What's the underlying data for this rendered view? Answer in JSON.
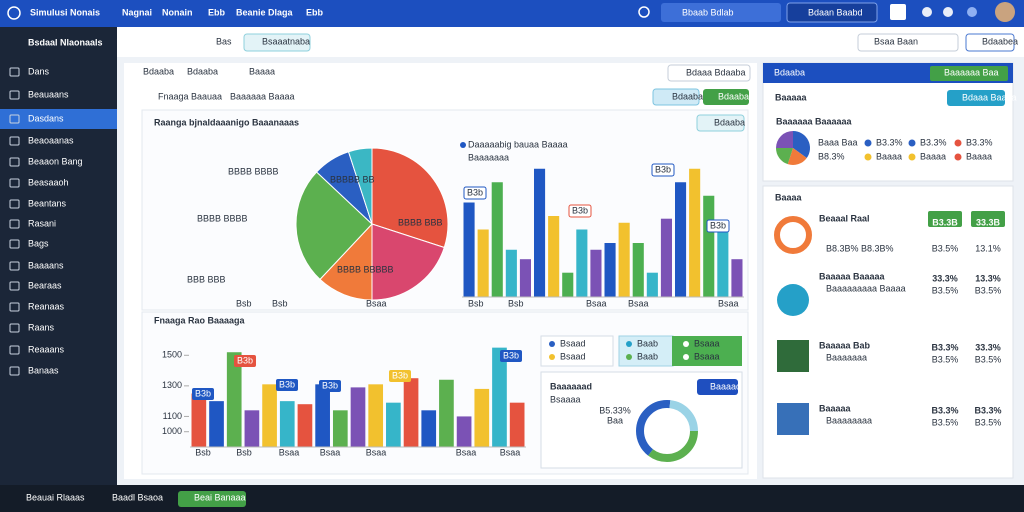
{
  "topbar": {
    "title": "Simulusi Nonais",
    "menu": [
      "Nagnai",
      "Nonain",
      "Ebb",
      "Beanie Dlaga",
      "Ebb"
    ],
    "search": "Bbaab Bdlab",
    "button": "Bdaan Baabd"
  },
  "sidebar": {
    "brand": "Bsdaal Nlaonaals",
    "items": [
      "Dans",
      "Beauaans",
      "Dasdans",
      "Beaoaanas",
      "Beaaon Bang",
      "Beasaaoh",
      "Beantans",
      "Rasani",
      "Bags",
      "Baaaans",
      "Bearaas",
      "Reanaas",
      "Raans",
      "Reaaans",
      "Banaas"
    ],
    "active_index": 2
  },
  "toolbar": {
    "label": "Bas",
    "chip": "Bsaaatnaba",
    "search": "Bsaa Baan",
    "button": "Bdaabea"
  },
  "tabs": [
    "Bdaaba",
    "Bdaaba",
    "Baaaa"
  ],
  "filter": "Bdaaa Bdaaba",
  "breadcrumb": [
    "Fnaaga Baauaa",
    "Baaaaaa Baaaa"
  ],
  "actions": [
    "Bdaaba",
    "Bdaaba"
  ],
  "panel_button": "Bdaaba",
  "pie_chart": {
    "type": "pie",
    "title": "Raanga bjnaldaaanigo Baaanaaas",
    "values": [
      30,
      20,
      12,
      25,
      8,
      5
    ],
    "colors": [
      "#e5533f",
      "#d9476e",
      "#f07a3a",
      "#5cb04f",
      "#2a5fc2",
      "#3bb7c4"
    ],
    "annotations": [
      "BBBB BBBB",
      "BBBB BBBB",
      "BBB BBB",
      "BBBBB BB",
      "BBBB BBB",
      "BBBB BBBBB"
    ],
    "categories": [
      "Bsb",
      "Bsb",
      "Bsaa"
    ]
  },
  "top_bar_chart": {
    "type": "bar",
    "legend": [
      "Daaaaabig bauaa Baaaa",
      "Baaaaaaa"
    ],
    "values": [
      70,
      50,
      85,
      35,
      28,
      95,
      60,
      18,
      50,
      35,
      40,
      55,
      40,
      18,
      58,
      85,
      95,
      75,
      50,
      28
    ],
    "colors": [
      "#1f57c3",
      "#f2c12e",
      "#4caf50",
      "#36b5c9",
      "#7b52b5"
    ],
    "ylim": [
      0,
      100
    ],
    "callouts": [
      "B3b",
      "B3b",
      "B3b",
      "B3b"
    ],
    "categories": [
      "Bsb",
      "Bsb",
      "Bsaa",
      "Bsaa",
      "Bsaa"
    ]
  },
  "lower_title": "Fnaaga Rao Baaaaga",
  "bottom_bar_chart": {
    "type": "bar",
    "values": [
      1250,
      1200,
      1520,
      1140,
      1310,
      1200,
      1180,
      1310,
      1140,
      1290,
      1310,
      1190,
      1350,
      1140,
      1340,
      1100,
      1280,
      1550,
      1190
    ],
    "colors": [
      "#e5533f",
      "#1f57c3",
      "#5cb04f",
      "#7b52b5",
      "#f2c12e",
      "#36b5c9"
    ],
    "ylim": [
      900,
      1600
    ],
    "yticks": [
      1000,
      1100,
      1300,
      1500
    ],
    "callouts": [
      "B3b",
      "B3b",
      "B3b",
      "B3b",
      "B3b",
      "B3b"
    ],
    "categories": [
      "Bsb",
      "Bsb",
      "Bsaa",
      "Bsaa",
      "Bsaa",
      "Bsaa",
      "Bsaa"
    ]
  },
  "legend_boxes": [
    "Bsaad",
    "Bsaad",
    "Baab",
    "Baab",
    "Bsaaa",
    "Bsaaa"
  ],
  "donut_card": {
    "title": "Baaaaaad",
    "subtitle": "Bsaaaa",
    "button": "Baaaad",
    "center": "B5.33%",
    "center_sub": "Baa"
  },
  "right_panel": {
    "header": "Bdaaba",
    "select": "Baaaaaa Baa",
    "title": "Baaaaa",
    "button": "Bdaaa Baaaa",
    "pie_title": "Baaaaaa Baaaaaa",
    "pie_legend": [
      "Baaa Baa",
      "B3.3%",
      "B3.3%",
      "B3.3%",
      "B8.3%",
      "Baaaa",
      "Baaaa",
      "Baaaa"
    ],
    "list_title": "Baaaa",
    "rows": [
      {
        "title": "Beaaal Raal",
        "sub": "B8.3B% B8.3B%",
        "values": [
          "B3.3B",
          "33.3B"
        ],
        "sub_values": [
          "B3.5%",
          "13.1%"
        ]
      },
      {
        "title": "Baaaaa Baaaaa",
        "sub": "Baaaaaaaaa Baaaa",
        "values": [
          "33.3%",
          "13.3%"
        ],
        "sub_values": [
          "B3.5%",
          "B3.5%"
        ]
      },
      {
        "title": "Baaaaa Bab",
        "sub": "Baaaaaaa",
        "values": [
          "B3.3%",
          "33.3%"
        ],
        "sub_values": [
          "B3.5%",
          "B3.5%"
        ]
      },
      {
        "title": "Baaaaa",
        "sub": "Baaaaaaaa",
        "values": [
          "B3.3%",
          "B3.3%"
        ],
        "sub_values": [
          "B3.5%",
          "B3.5%"
        ]
      }
    ]
  },
  "bottombar": {
    "items": [
      "Beauai Rlaaas",
      "Baadl Bsaoa"
    ],
    "button": "Beai Banaaa"
  }
}
